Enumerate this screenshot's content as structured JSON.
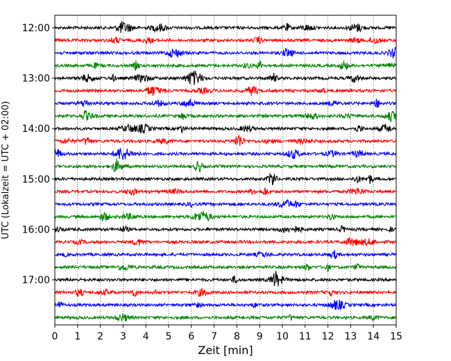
{
  "chart_data": {
    "type": "line",
    "title": "",
    "xlabel": "Zeit  [min]",
    "ylabel": "UTC (Lokalzeit = UTC + 02:00)",
    "xlim": [
      0,
      15
    ],
    "x_ticks": [
      "0",
      "1",
      "2",
      "3",
      "4",
      "5",
      "6",
      "7",
      "8",
      "9",
      "10",
      "11",
      "12",
      "13",
      "14",
      "15"
    ],
    "y_ticks": [
      "12:00",
      "13:00",
      "14:00",
      "15:00",
      "16:00",
      "17:00"
    ],
    "grid": "vertical dotted",
    "trace_interval_minutes": 15,
    "trace_start_times": [
      "12:00",
      "12:15",
      "12:30",
      "12:45",
      "13:00",
      "13:15",
      "13:30",
      "13:45",
      "14:00",
      "14:15",
      "14:30",
      "14:45",
      "15:00",
      "15:15",
      "15:30",
      "15:45",
      "16:00",
      "16:15",
      "16:30",
      "16:45",
      "17:00",
      "17:15",
      "17:30",
      "17:45"
    ],
    "trace_colors": [
      "#000000",
      "#ff0000",
      "#0000ff",
      "#008000"
    ]
  }
}
